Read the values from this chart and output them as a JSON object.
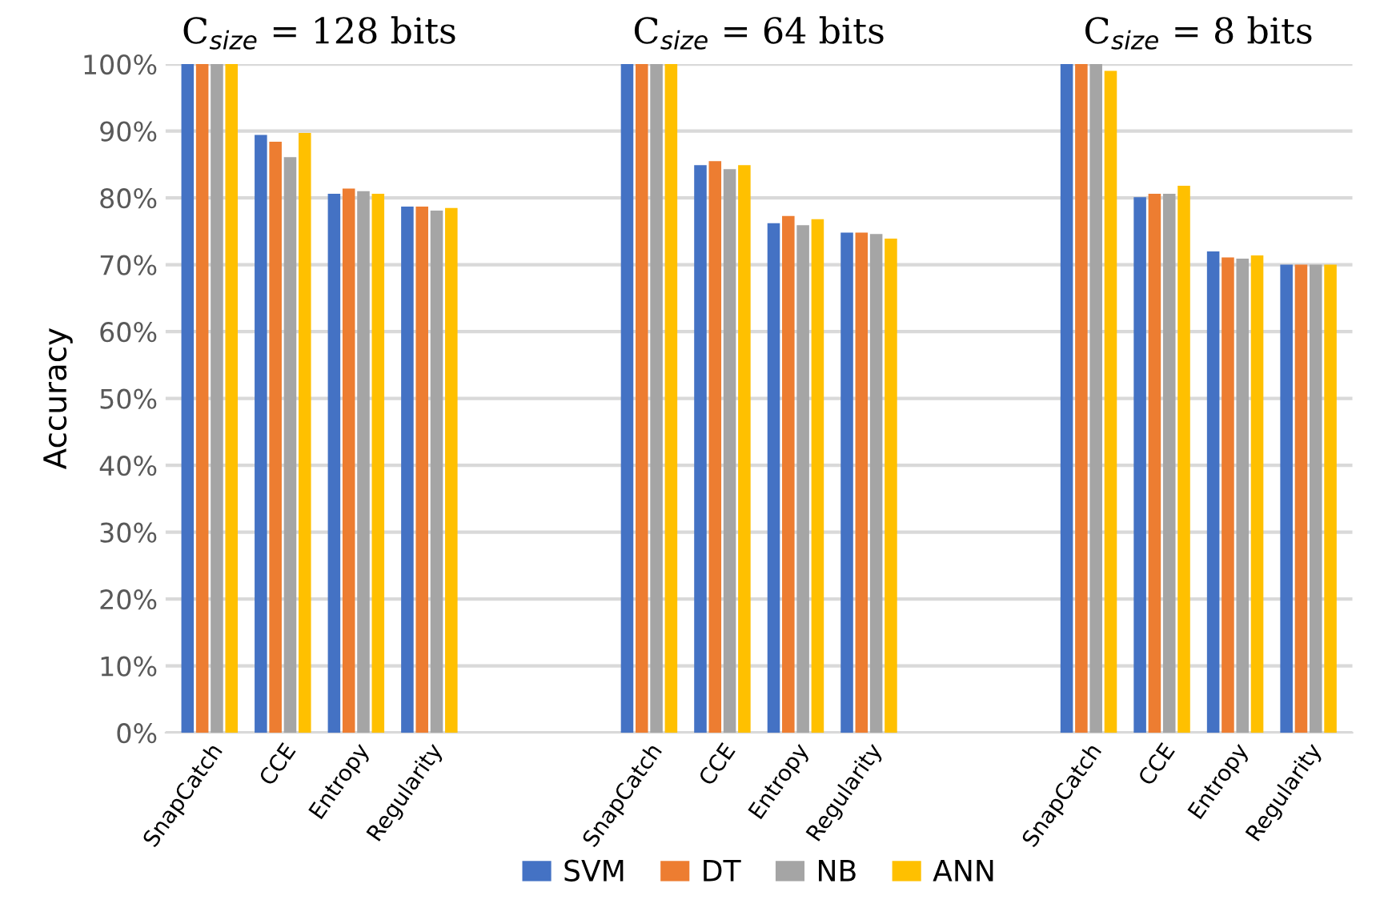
{
  "chart_data": {
    "type": "bar",
    "ylabel": "Accuracy",
    "annotations": [
      "C$_{size}$ = 128 bits",
      "C$_{size}$ = 64 bits",
      "C$_{size}$ = 8 bits"
    ],
    "categories": [
      "SnapCatch",
      "CCE",
      "Entropy",
      "Regularity",
      null,
      null,
      "SnapCatch",
      "CCE",
      "Entropy",
      "Regularity",
      null,
      null,
      "SnapCatch",
      "CCE",
      "Entropy",
      "Regularity"
    ],
    "series": [
      {
        "name": "SVM",
        "color": "#4472c4",
        "values": [
          100,
          89.4,
          80.6,
          78.7,
          null,
          null,
          100,
          84.9,
          76.2,
          74.8,
          null,
          null,
          100,
          80.1,
          72.0,
          70.0
        ]
      },
      {
        "name": "DT",
        "color": "#ed7d31",
        "values": [
          100,
          88.4,
          81.4,
          78.7,
          null,
          null,
          100,
          85.5,
          77.3,
          74.8,
          null,
          null,
          100,
          80.6,
          71.1,
          70.0
        ]
      },
      {
        "name": "NB",
        "color": "#a5a5a5",
        "values": [
          100,
          86.1,
          81.0,
          78.1,
          null,
          null,
          100,
          84.3,
          75.9,
          74.6,
          null,
          null,
          100,
          80.6,
          70.9,
          70.0
        ]
      },
      {
        "name": "ANN",
        "color": "#ffc000",
        "values": [
          100,
          89.7,
          80.6,
          78.5,
          null,
          null,
          100,
          84.9,
          76.8,
          73.9,
          null,
          null,
          99.0,
          81.8,
          71.4,
          70.0
        ]
      }
    ],
    "ylim": [
      0,
      100
    ],
    "yticks": [
      {
        "value": 0,
        "label": "0%"
      },
      {
        "value": 10,
        "label": "10%"
      },
      {
        "value": 20,
        "label": "20%"
      },
      {
        "value": 30,
        "label": "30%"
      },
      {
        "value": 40,
        "label": "40%"
      },
      {
        "value": 50,
        "label": "50%"
      },
      {
        "value": 60,
        "label": "60%"
      },
      {
        "value": 70,
        "label": "70%"
      },
      {
        "value": 80,
        "label": "80%"
      },
      {
        "value": 90,
        "label": "90%"
      },
      {
        "value": 100,
        "label": "100%"
      }
    ],
    "grid": "y",
    "legend": "bottom"
  }
}
